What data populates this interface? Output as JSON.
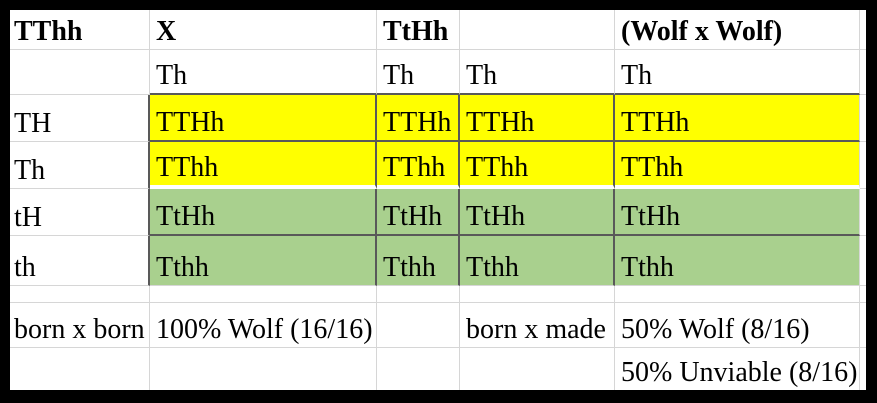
{
  "colors": {
    "frame": "#000000",
    "yellow": "#ffff00",
    "green": "#a9d08e",
    "grid_light": "#d6d6d6",
    "grid_dark": "#595959",
    "text": "#000000",
    "background": "#ffffff"
  },
  "table": {
    "rows": [
      {
        "cells": [
          "TThh",
          "X",
          "TtHh",
          "",
          "(Wolf x Wolf)"
        ]
      },
      {
        "cells": [
          "",
          "Th",
          "Th",
          "Th",
          "Th"
        ]
      },
      {
        "cells": [
          "TH",
          "TTHh",
          "TTHh",
          "TTHh",
          "TTHh"
        ]
      },
      {
        "cells": [
          "Th",
          "TThh",
          "TThh",
          "TThh",
          "TThh"
        ]
      },
      {
        "cells": [
          "tH",
          "TtHh",
          "TtHh",
          "TtHh",
          "TtHh"
        ]
      },
      {
        "cells": [
          "th",
          "Tthh",
          "Tthh",
          "Tthh",
          "Tthh"
        ]
      },
      {
        "cells": [
          "",
          "",
          "",
          "",
          ""
        ]
      },
      {
        "cells": [
          "born x born",
          "100% Wolf (16/16)",
          "",
          "born x made",
          "50% Wolf (8/16)"
        ]
      },
      {
        "cells": [
          "",
          "",
          "",
          "",
          "50% Unviable (8/16)"
        ]
      }
    ]
  }
}
